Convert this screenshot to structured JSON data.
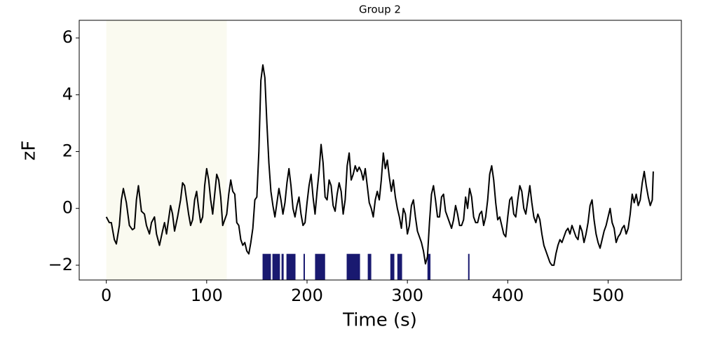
{
  "chart_data": {
    "type": "line",
    "title": "Group 2",
    "x_label": "Time (s)",
    "y_label": "zF",
    "xlim": [
      -27,
      573
    ],
    "ylim": [
      -2.52,
      6.62
    ],
    "xticks": [
      0,
      100,
      200,
      300,
      400,
      500
    ],
    "yticks": [
      {
        "value": -2,
        "label": "−2"
      },
      0,
      2,
      4,
      6
    ],
    "shaded_region": [
      0,
      120
    ],
    "shade_color": "#fafaf0",
    "event_color": "#191970",
    "events": [
      [
        155.7,
        164
      ],
      [
        165.5,
        173
      ],
      [
        174.6,
        176.7
      ],
      [
        179.5,
        188.5
      ],
      [
        196.5,
        197.5
      ],
      [
        208,
        218
      ],
      [
        239.5,
        252.8
      ],
      [
        260.5,
        264
      ],
      [
        283,
        287
      ],
      [
        290,
        294.7
      ],
      [
        320,
        323
      ],
      [
        360.5,
        361.5
      ]
    ],
    "series": [
      {
        "name": "zF",
        "color": "#000000",
        "x": [
          0,
          3,
          5,
          8,
          10,
          13,
          15,
          17,
          20,
          23,
          26,
          28,
          30,
          32,
          35,
          38,
          40,
          43,
          45,
          48,
          50,
          53,
          56,
          58,
          60,
          62,
          64,
          66,
          68,
          71,
          74,
          76,
          78,
          80,
          82,
          84,
          86,
          88,
          90,
          92,
          94,
          96,
          98,
          100,
          102,
          104,
          106,
          108,
          110,
          112,
          114,
          116,
          118,
          120,
          122,
          124,
          126,
          128,
          130,
          132,
          134,
          136,
          138,
          140,
          142,
          144,
          146,
          148,
          150,
          152,
          154,
          156,
          158,
          160,
          162,
          164,
          166,
          168,
          170,
          172,
          174,
          176,
          178,
          180,
          182,
          184,
          186,
          188,
          190,
          192,
          194,
          196,
          198,
          200,
          202,
          204,
          206,
          208,
          210,
          212,
          214,
          216,
          218,
          220,
          222,
          224,
          226,
          228,
          230,
          232,
          234,
          236,
          238,
          240,
          242,
          244,
          246,
          248,
          250,
          252,
          254,
          256,
          258,
          260,
          262,
          264,
          266,
          268,
          270,
          272,
          274,
          276,
          278,
          280,
          282,
          284,
          286,
          288,
          290,
          292,
          294,
          296,
          298,
          300,
          302,
          304,
          306,
          308,
          310,
          312,
          314,
          316,
          318,
          320,
          322,
          324,
          326,
          328,
          330,
          332,
          334,
          336,
          338,
          340,
          342,
          344,
          346,
          348,
          350,
          352,
          354,
          356,
          358,
          360,
          362,
          364,
          366,
          368,
          370,
          372,
          374,
          376,
          378,
          380,
          382,
          384,
          386,
          388,
          390,
          392,
          394,
          396,
          398,
          400,
          402,
          404,
          406,
          408,
          410,
          412,
          414,
          416,
          418,
          420,
          422,
          424,
          426,
          428,
          430,
          432,
          434,
          436,
          438,
          440,
          442,
          444,
          446,
          448,
          450,
          452,
          454,
          456,
          458,
          460,
          462,
          464,
          466,
          468,
          470,
          472,
          474,
          476,
          478,
          480,
          482,
          484,
          486,
          488,
          490,
          492,
          494,
          496,
          498,
          500,
          502,
          504,
          506,
          508,
          510,
          512,
          514,
          516,
          518,
          520,
          522,
          524,
          526,
          528,
          530,
          532,
          534,
          536,
          538,
          540,
          542,
          544,
          545
        ],
        "values": [
          -0.3,
          -0.5,
          -0.5,
          -1.1,
          -1.25,
          -0.6,
          0.3,
          0.7,
          0.2,
          -0.6,
          -0.75,
          -0.7,
          0.3,
          0.8,
          -0.1,
          -0.2,
          -0.6,
          -0.9,
          -0.5,
          -0.3,
          -0.9,
          -1.3,
          -0.8,
          -0.5,
          -0.9,
          -0.4,
          0.1,
          -0.2,
          -0.8,
          -0.3,
          0.3,
          0.9,
          0.8,
          0.3,
          -0.2,
          -0.6,
          -0.4,
          0.3,
          0.6,
          0,
          -0.5,
          -0.3,
          0.8,
          1.4,
          1.0,
          0.3,
          -0.2,
          0.5,
          1.2,
          1.0,
          0.4,
          -0.6,
          -0.4,
          -0.2,
          0.5,
          1.0,
          0.6,
          0.5,
          -0.5,
          -0.6,
          -1.1,
          -1.3,
          -1.2,
          -1.5,
          -1.6,
          -1.2,
          -0.7,
          0.3,
          0.4,
          2.0,
          4.5,
          5.05,
          4.6,
          3.0,
          1.6,
          0.6,
          0.1,
          -0.3,
          0.2,
          0.7,
          0.3,
          -0.2,
          0.2,
          0.9,
          1.4,
          0.8,
          0,
          -0.3,
          0.1,
          0.4,
          -0.2,
          -0.6,
          -0.5,
          0.2,
          0.8,
          1.2,
          0.4,
          -0.2,
          0.6,
          1.3,
          2.25,
          1.6,
          0.4,
          0.3,
          1.0,
          0.8,
          0.1,
          -0.1,
          0.5,
          0.9,
          0.6,
          -0.2,
          0.3,
          1.5,
          1.95,
          1.0,
          1.2,
          1.5,
          1.3,
          1.45,
          1.3,
          1.0,
          1.4,
          0.8,
          0.2,
          0.0,
          -0.3,
          0.3,
          0.6,
          0.3,
          1.0,
          1.95,
          1.4,
          1.7,
          1.1,
          0.6,
          1.0,
          0.4,
          0.0,
          -0.3,
          -0.7,
          0.0,
          -0.2,
          -0.9,
          -0.6,
          0.1,
          0.3,
          -0.3,
          -0.8,
          -1.0,
          -1.2,
          -1.5,
          -1.95,
          -1.7,
          -0.5,
          0.5,
          0.8,
          0.3,
          -0.3,
          -0.3,
          0.4,
          0.5,
          -0.1,
          -0.3,
          -0.5,
          -0.7,
          -0.4,
          0.1,
          -0.2,
          -0.6,
          -0.6,
          -0.4,
          0.4,
          0.0,
          0.7,
          0.4,
          -0.3,
          -0.5,
          -0.5,
          -0.2,
          -0.1,
          -0.6,
          -0.3,
          0.3,
          1.2,
          1.5,
          1.0,
          0.2,
          -0.4,
          -0.3,
          -0.6,
          -0.9,
          -1.0,
          -0.3,
          0.3,
          0.4,
          -0.2,
          -0.3,
          0.3,
          0.8,
          0.6,
          0.0,
          -0.2,
          0.3,
          0.8,
          0.2,
          -0.3,
          -0.5,
          -0.2,
          -0.4,
          -0.9,
          -1.3,
          -1.5,
          -1.7,
          -1.9,
          -2.0,
          -2.0,
          -1.6,
          -1.3,
          -1.1,
          -1.2,
          -1.0,
          -0.8,
          -0.7,
          -0.9,
          -0.6,
          -0.8,
          -1.0,
          -1.1,
          -0.6,
          -0.8,
          -1.2,
          -0.9,
          -0.5,
          0.1,
          0.3,
          -0.4,
          -0.9,
          -1.2,
          -1.4,
          -1.1,
          -0.8,
          -0.6,
          -0.3,
          0.0,
          -0.5,
          -0.7,
          -1.2,
          -1.0,
          -0.9,
          -0.7,
          -0.6,
          -0.9,
          -0.7,
          -0.2,
          0.5,
          0.2,
          0.5,
          0.1,
          0.3,
          0.9,
          1.3,
          0.8,
          0.4,
          0.1,
          0.3,
          1.3
        ]
      }
    ]
  }
}
